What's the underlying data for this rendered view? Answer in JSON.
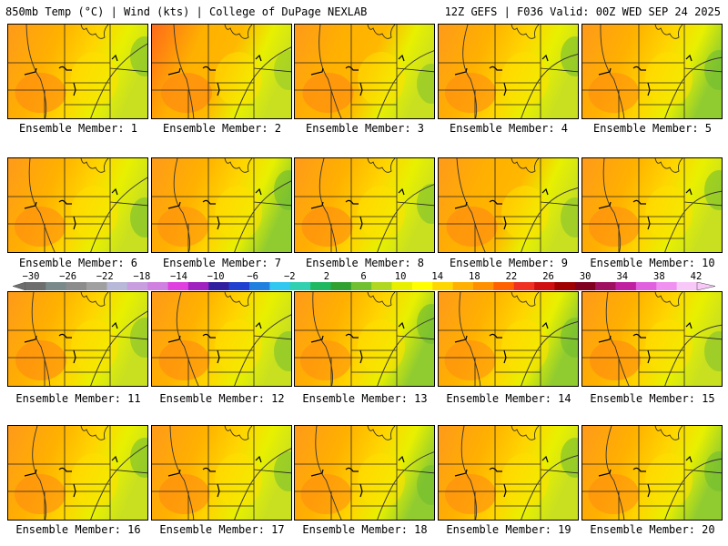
{
  "header": {
    "left": "850mb Temp (°C) | Wind (kts) | College of DuPage NEXLAB",
    "right": "12Z GEFS | F036 Valid: 00Z WED SEP 24 2025"
  },
  "members": [
    {
      "label": "Ensemble Member: 1",
      "warmth": 0.55
    },
    {
      "label": "Ensemble Member: 2",
      "warmth": 0.8
    },
    {
      "label": "Ensemble Member: 3",
      "warmth": 0.65
    },
    {
      "label": "Ensemble Member: 4",
      "warmth": 0.5
    },
    {
      "label": "Ensemble Member: 5",
      "warmth": 0.45
    },
    {
      "label": "Ensemble Member: 6",
      "warmth": 0.5
    },
    {
      "label": "Ensemble Member: 7",
      "warmth": 0.4
    },
    {
      "label": "Ensemble Member: 8",
      "warmth": 0.55
    },
    {
      "label": "Ensemble Member: 9",
      "warmth": 0.65
    },
    {
      "label": "Ensemble Member: 10",
      "warmth": 0.5
    },
    {
      "label": "Ensemble Member: 11",
      "warmth": 0.6
    },
    {
      "label": "Ensemble Member: 12",
      "warmth": 0.55
    },
    {
      "label": "Ensemble Member: 13",
      "warmth": 0.4
    },
    {
      "label": "Ensemble Member: 14",
      "warmth": 0.45
    },
    {
      "label": "Ensemble Member: 15",
      "warmth": 0.6
    },
    {
      "label": "Ensemble Member: 16",
      "warmth": 0.5
    },
    {
      "label": "Ensemble Member: 17",
      "warmth": 0.55
    },
    {
      "label": "Ensemble Member: 18",
      "warmth": 0.45
    },
    {
      "label": "Ensemble Member: 19",
      "warmth": 0.5
    },
    {
      "label": "Ensemble Member: 20",
      "warmth": 0.45
    }
  ],
  "colorbar": {
    "ticks": [
      "−30",
      "−26",
      "−22",
      "−18",
      "−14",
      "−10",
      "−6",
      "−2",
      "2",
      "6",
      "10",
      "14",
      "18",
      "22",
      "26",
      "30",
      "34",
      "38",
      "42"
    ],
    "colors": [
      "#6e6e6e",
      "#7a8a8a",
      "#8c8c8c",
      "#a0a0a0",
      "#b8b8d8",
      "#c89ee0",
      "#d080e0",
      "#e040e0",
      "#a020c0",
      "#3020a0",
      "#2040d0",
      "#2080e0",
      "#30c8f0",
      "#30d0b0",
      "#20b860",
      "#30a030",
      "#70c030",
      "#b0d820",
      "#e8f000",
      "#ffff00",
      "#ffd700",
      "#ffb000",
      "#ff9000",
      "#ff6000",
      "#f03020",
      "#d01010",
      "#a00000",
      "#800020",
      "#a01060",
      "#c020a0",
      "#e060e0",
      "#f090f0",
      "#f8c8f8"
    ]
  }
}
